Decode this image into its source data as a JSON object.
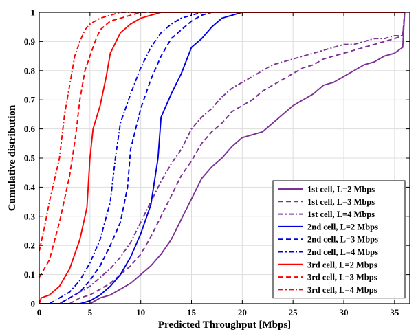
{
  "chart_data": {
    "type": "line",
    "title": "",
    "xlabel": "Predicted Throughput [Mbps]",
    "ylabel": "Cumulative distribution",
    "xlim": [
      0,
      36.5
    ],
    "ylim": [
      0,
      1
    ],
    "xticks": [
      0,
      5,
      10,
      15,
      20,
      25,
      30,
      35
    ],
    "yticks": [
      0,
      0.1,
      0.2,
      0.3,
      0.4,
      0.5,
      0.6,
      0.7,
      0.8,
      0.9,
      1
    ],
    "grid": true,
    "legend_position": "bottom-right",
    "series": [
      {
        "name": "1st cell, L=2 Mbps",
        "color": "#7B3294",
        "dash": "solid",
        "points": [
          [
            0,
            0
          ],
          [
            5,
            0
          ],
          [
            6,
            0.02
          ],
          [
            7,
            0.03
          ],
          [
            8,
            0.05
          ],
          [
            9,
            0.07
          ],
          [
            10,
            0.1
          ],
          [
            11,
            0.13
          ],
          [
            12,
            0.17
          ],
          [
            13,
            0.22
          ],
          [
            14,
            0.29
          ],
          [
            15,
            0.36
          ],
          [
            16,
            0.43
          ],
          [
            17,
            0.47
          ],
          [
            18,
            0.5
          ],
          [
            19,
            0.54
          ],
          [
            20,
            0.57
          ],
          [
            21,
            0.58
          ],
          [
            22,
            0.59
          ],
          [
            23,
            0.62
          ],
          [
            24,
            0.65
          ],
          [
            25,
            0.68
          ],
          [
            26,
            0.7
          ],
          [
            27,
            0.72
          ],
          [
            28,
            0.75
          ],
          [
            29,
            0.76
          ],
          [
            30,
            0.78
          ],
          [
            31,
            0.8
          ],
          [
            32,
            0.82
          ],
          [
            33,
            0.83
          ],
          [
            34,
            0.85
          ],
          [
            35,
            0.86
          ],
          [
            35.8,
            0.88
          ],
          [
            36,
            1
          ]
        ]
      },
      {
        "name": "1st cell, L=3 Mbps",
        "color": "#7B3294",
        "dash": "dash",
        "points": [
          [
            0,
            0
          ],
          [
            3,
            0
          ],
          [
            4,
            0.02
          ],
          [
            5,
            0.03
          ],
          [
            6,
            0.05
          ],
          [
            7,
            0.07
          ],
          [
            8,
            0.1
          ],
          [
            9,
            0.13
          ],
          [
            10,
            0.17
          ],
          [
            11,
            0.23
          ],
          [
            12,
            0.3
          ],
          [
            13,
            0.37
          ],
          [
            14,
            0.44
          ],
          [
            15,
            0.49
          ],
          [
            16,
            0.55
          ],
          [
            17,
            0.59
          ],
          [
            18,
            0.62
          ],
          [
            19,
            0.66
          ],
          [
            20,
            0.68
          ],
          [
            21,
            0.7
          ],
          [
            22,
            0.73
          ],
          [
            23,
            0.75
          ],
          [
            24,
            0.77
          ],
          [
            25,
            0.79
          ],
          [
            26,
            0.81
          ],
          [
            27,
            0.82
          ],
          [
            28,
            0.84
          ],
          [
            29,
            0.85
          ],
          [
            30,
            0.86
          ],
          [
            31,
            0.87
          ],
          [
            32,
            0.88
          ],
          [
            33,
            0.89
          ],
          [
            34,
            0.9
          ],
          [
            35,
            0.91
          ],
          [
            35.8,
            0.92
          ],
          [
            36,
            1
          ]
        ]
      },
      {
        "name": "1st cell, L=4 Mbps",
        "color": "#7B3294",
        "dash": "dashdot",
        "points": [
          [
            0,
            0
          ],
          [
            2,
            0
          ],
          [
            3,
            0.02
          ],
          [
            4,
            0.04
          ],
          [
            5,
            0.06
          ],
          [
            6,
            0.09
          ],
          [
            7,
            0.12
          ],
          [
            8,
            0.16
          ],
          [
            9,
            0.21
          ],
          [
            10,
            0.28
          ],
          [
            11,
            0.35
          ],
          [
            12,
            0.42
          ],
          [
            13,
            0.48
          ],
          [
            14,
            0.53
          ],
          [
            15,
            0.6
          ],
          [
            16,
            0.64
          ],
          [
            17,
            0.67
          ],
          [
            18,
            0.71
          ],
          [
            19,
            0.74
          ],
          [
            20,
            0.76
          ],
          [
            21,
            0.78
          ],
          [
            22,
            0.8
          ],
          [
            23,
            0.82
          ],
          [
            24,
            0.83
          ],
          [
            25,
            0.84
          ],
          [
            26,
            0.85
          ],
          [
            27,
            0.86
          ],
          [
            28,
            0.87
          ],
          [
            29,
            0.88
          ],
          [
            30,
            0.89
          ],
          [
            31,
            0.89
          ],
          [
            32,
            0.9
          ],
          [
            33,
            0.91
          ],
          [
            34,
            0.91
          ],
          [
            35,
            0.92
          ],
          [
            35.8,
            0.92
          ],
          [
            36,
            1
          ]
        ]
      },
      {
        "name": "2nd cell, L=2 Mbps",
        "color": "#0000E0",
        "dash": "solid",
        "points": [
          [
            0,
            0
          ],
          [
            4,
            0
          ],
          [
            5,
            0.01
          ],
          [
            6,
            0.03
          ],
          [
            7,
            0.06
          ],
          [
            8,
            0.1
          ],
          [
            9,
            0.16
          ],
          [
            10,
            0.24
          ],
          [
            11,
            0.34
          ],
          [
            11.7,
            0.5
          ],
          [
            12,
            0.64
          ],
          [
            13,
            0.72
          ],
          [
            14,
            0.79
          ],
          [
            15,
            0.88
          ],
          [
            16,
            0.91
          ],
          [
            17,
            0.95
          ],
          [
            18,
            0.98
          ],
          [
            19,
            0.99
          ],
          [
            20,
            1
          ],
          [
            36,
            1
          ]
        ]
      },
      {
        "name": "2nd cell, L=3 Mbps",
        "color": "#0000E0",
        "dash": "dash",
        "points": [
          [
            0,
            0
          ],
          [
            2,
            0
          ],
          [
            3,
            0.02
          ],
          [
            4,
            0.04
          ],
          [
            5,
            0.08
          ],
          [
            6,
            0.13
          ],
          [
            7,
            0.2
          ],
          [
            8,
            0.28
          ],
          [
            8.7,
            0.4
          ],
          [
            9,
            0.53
          ],
          [
            10,
            0.67
          ],
          [
            11,
            0.77
          ],
          [
            12,
            0.85
          ],
          [
            13,
            0.91
          ],
          [
            14,
            0.94
          ],
          [
            15,
            0.97
          ],
          [
            16,
            0.99
          ],
          [
            17,
            1
          ],
          [
            36,
            1
          ]
        ]
      },
      {
        "name": "2nd cell, L=4 Mbps",
        "color": "#0000E0",
        "dash": "dashdot",
        "points": [
          [
            0,
            0
          ],
          [
            1,
            0
          ],
          [
            2,
            0.02
          ],
          [
            3,
            0.04
          ],
          [
            4,
            0.08
          ],
          [
            5,
            0.14
          ],
          [
            6,
            0.22
          ],
          [
            7,
            0.35
          ],
          [
            7.5,
            0.5
          ],
          [
            8,
            0.62
          ],
          [
            9,
            0.72
          ],
          [
            10,
            0.81
          ],
          [
            11,
            0.88
          ],
          [
            12,
            0.93
          ],
          [
            13,
            0.96
          ],
          [
            14,
            0.98
          ],
          [
            15,
            0.99
          ],
          [
            16,
            1
          ],
          [
            36,
            1
          ]
        ]
      },
      {
        "name": "3rd cell, L=2 Mbps",
        "color": "#FF0000",
        "dash": "solid",
        "points": [
          [
            0,
            0
          ],
          [
            0.2,
            0.02
          ],
          [
            1,
            0.03
          ],
          [
            2,
            0.06
          ],
          [
            3,
            0.12
          ],
          [
            4,
            0.22
          ],
          [
            4.7,
            0.33
          ],
          [
            5,
            0.5
          ],
          [
            5.3,
            0.6
          ],
          [
            6,
            0.68
          ],
          [
            6.6,
            0.78
          ],
          [
            7,
            0.86
          ],
          [
            8,
            0.93
          ],
          [
            9,
            0.96
          ],
          [
            10,
            0.98
          ],
          [
            11,
            0.99
          ],
          [
            12,
            1
          ],
          [
            36,
            1
          ]
        ]
      },
      {
        "name": "3rd cell, L=3 Mbps",
        "color": "#FF0000",
        "dash": "dash",
        "points": [
          [
            0,
            0.09
          ],
          [
            1,
            0.15
          ],
          [
            2,
            0.28
          ],
          [
            3,
            0.44
          ],
          [
            3.6,
            0.58
          ],
          [
            4,
            0.7
          ],
          [
            4.5,
            0.8
          ],
          [
            5,
            0.85
          ],
          [
            5.5,
            0.9
          ],
          [
            6,
            0.94
          ],
          [
            7,
            0.97
          ],
          [
            8,
            0.98
          ],
          [
            9,
            0.99
          ],
          [
            10,
            1
          ],
          [
            36,
            1
          ]
        ]
      },
      {
        "name": "3rd cell, L=4 Mbps",
        "color": "#FF0000",
        "dash": "dashdot",
        "points": [
          [
            0,
            0.18
          ],
          [
            0.5,
            0.26
          ],
          [
            1,
            0.35
          ],
          [
            2,
            0.5
          ],
          [
            2.5,
            0.65
          ],
          [
            3,
            0.75
          ],
          [
            3.5,
            0.85
          ],
          [
            4,
            0.9
          ],
          [
            4.5,
            0.94
          ],
          [
            5,
            0.96
          ],
          [
            6,
            0.98
          ],
          [
            7,
            0.99
          ],
          [
            8,
            1
          ],
          [
            36,
            1
          ]
        ]
      }
    ]
  }
}
